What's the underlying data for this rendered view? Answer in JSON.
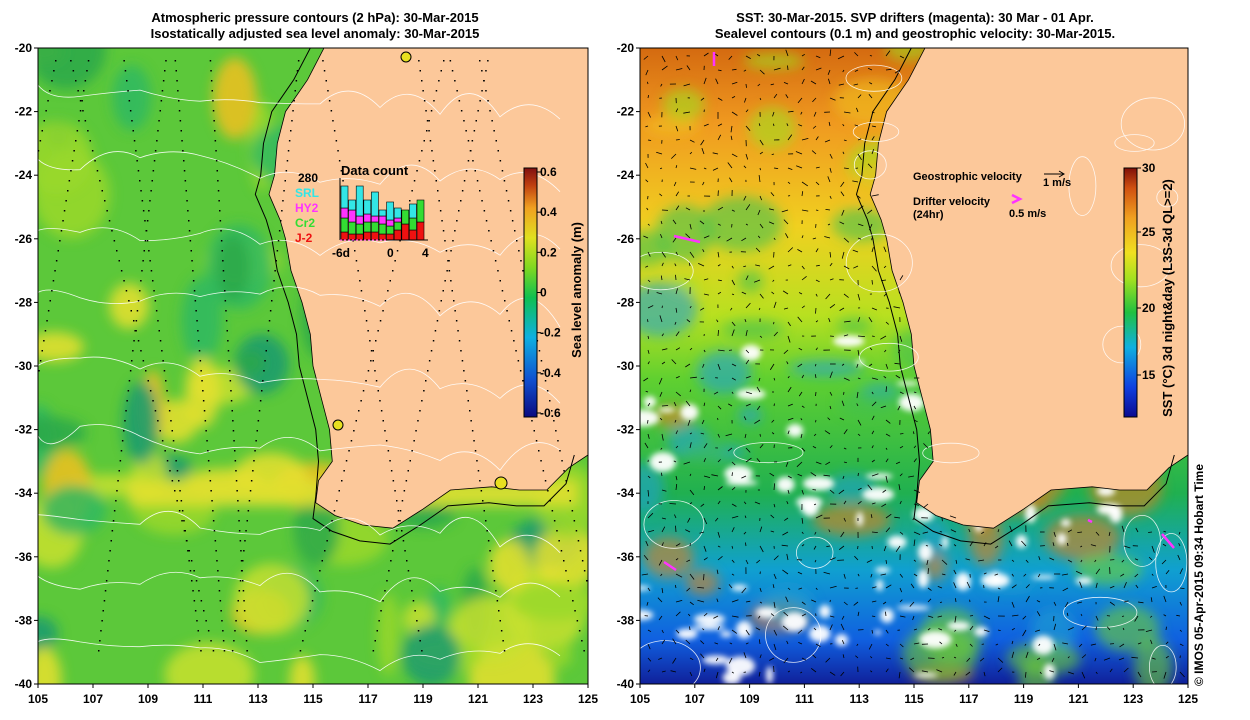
{
  "left_panel": {
    "title_line1": "Atmospheric pressure contours (2 hPa): 30-Mar-2015",
    "title_line2": "Isostatically adjusted sea level anomaly: 30-Mar-2015",
    "x_ticks": [
      "105",
      "107",
      "109",
      "111",
      "113",
      "115",
      "117",
      "119",
      "121",
      "123",
      "125"
    ],
    "y_ticks": [
      "-20",
      "-22",
      "-24",
      "-26",
      "-28",
      "-30",
      "-32",
      "-34",
      "-36",
      "-38",
      "-40"
    ],
    "colorbar_label": "Sea level anomaly (m)",
    "colorbar_ticks": [
      "0.6",
      "0.4",
      "0.2",
      "0",
      "-0.2",
      "-0.4",
      "-0.6"
    ],
    "inset": {
      "title": "Data count",
      "total": "280",
      "legend": [
        {
          "label": "SRL",
          "color": "#33e6e6"
        },
        {
          "label": "HY2",
          "color": "#ff33ff"
        },
        {
          "label": "Cr2",
          "color": "#33dd33"
        },
        {
          "label": "J-2",
          "color": "#ee1111"
        }
      ],
      "x_ticks": [
        "-6d",
        "0",
        "4"
      ]
    }
  },
  "right_panel": {
    "title_line1": "SST: 30-Mar-2015. SVP drifters (magenta): 30 Mar - 01 Apr.",
    "title_line2": "Sealevel contours (0.1 m) and geostrophic velocity: 30-Mar-2015.",
    "x_ticks": [
      "105",
      "107",
      "109",
      "111",
      "113",
      "115",
      "117",
      "119",
      "121",
      "123",
      "125"
    ],
    "y_ticks": [
      "-20",
      "-22",
      "-24",
      "-26",
      "-28",
      "-30",
      "-32",
      "-34",
      "-36",
      "-38",
      "-40"
    ],
    "colorbar_label": "SST (°C) 3d night&day (L3S-3d QL>=2)",
    "colorbar_ticks": [
      "30",
      "25",
      "20",
      "15"
    ],
    "legend": {
      "geo_label": "Geostrophic velocity",
      "geo_scale": "1 m/s",
      "drifter_label": "Drifter velocity",
      "drifter_sub": "(24hr)",
      "drifter_scale": "0.5 m/s"
    }
  },
  "credit": "© IMOS 05-Apr-2015 09:34 Hobart Time",
  "colors": {
    "land": "#fcc89a",
    "sla_scale": [
      "#0a0a80",
      "#1050d0",
      "#10b0e0",
      "#10c050",
      "#80d820",
      "#e0e020",
      "#f0a020",
      "#c04010",
      "#801010"
    ],
    "sst_scale": [
      "#0a0a90",
      "#1040e0",
      "#10b0e0",
      "#20c040",
      "#a0e020",
      "#f0e020",
      "#f0a020",
      "#d05010",
      "#801008"
    ],
    "drifter": "#ff33ff"
  }
}
